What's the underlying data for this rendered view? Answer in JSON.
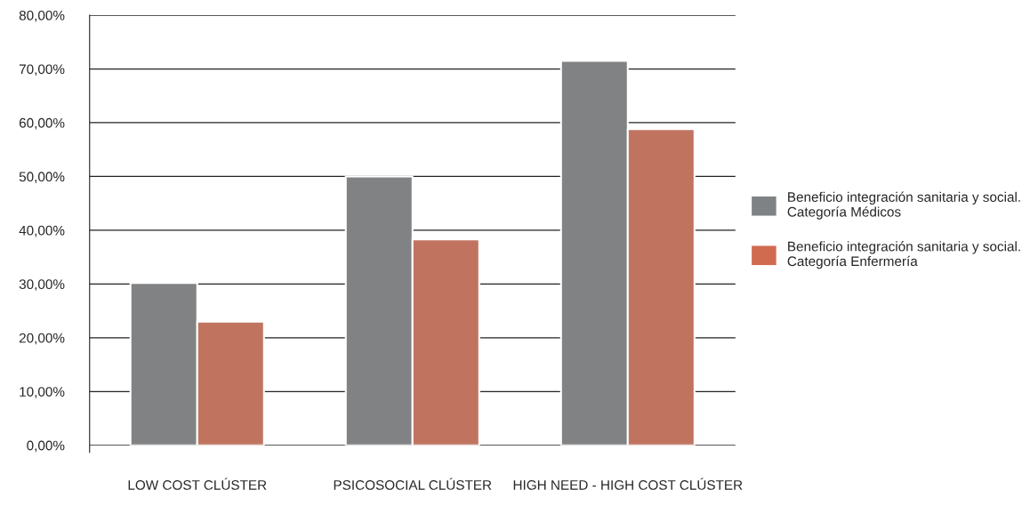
{
  "chart_data": {
    "type": "bar",
    "categories": [
      "LOW COST CLÚSTER",
      "PSICOSOCIAL CLÚSTER",
      "HIGH NEED - HIGH COST CLÚSTER"
    ],
    "series": [
      {
        "name": "Beneficio integración sanitaria y social. Categoría Médicos",
        "color": "#7f8285",
        "values": [
          30.2,
          50.0,
          71.5
        ]
      },
      {
        "name": "Beneficio integración sanitaria y social. Categoría Enfermería",
        "color": "#d06b50",
        "values": [
          23.0,
          38.3,
          58.8
        ]
      }
    ],
    "ylim": [
      0,
      80
    ],
    "yticks": [
      {
        "value": 0,
        "label": "0,00%"
      },
      {
        "value": 10,
        "label": "10,00%"
      },
      {
        "value": 20,
        "label": "20,00%"
      },
      {
        "value": 30,
        "label": "30,00%"
      },
      {
        "value": 40,
        "label": "40,00%"
      },
      {
        "value": 50,
        "label": "50,00%"
      },
      {
        "value": 60,
        "label": "60,00%"
      },
      {
        "value": 70,
        "label": "70,00%"
      },
      {
        "value": 80,
        "label": "80,00%"
      }
    ],
    "grid": "y",
    "legend": "right"
  }
}
